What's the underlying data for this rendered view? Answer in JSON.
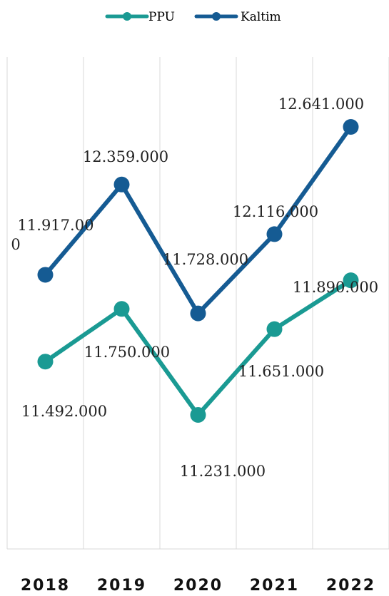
{
  "chart_data": {
    "type": "line",
    "categories": [
      "2018",
      "2019",
      "2020",
      "2021",
      "2022"
    ],
    "series": [
      {
        "name": "PPU",
        "values": [
          11492000,
          11750000,
          11231000,
          11651000,
          11890000
        ],
        "labels": [
          "11.492.000",
          "11.750.000",
          "11.231.000",
          "11.651.000",
          "11.890.000"
        ],
        "color": "#1a9a93"
      },
      {
        "name": "Kaltim",
        "values": [
          11917000,
          12359000,
          11728000,
          12116000,
          12641000
        ],
        "labels": [
          "11.917.000",
          "12.359.000",
          "11.728.000",
          "12.116.000",
          "12.641.000"
        ],
        "color": "#155b93"
      }
    ],
    "legend": "top-center",
    "grid": "vertical",
    "title": "",
    "xlabel": "",
    "ylabel": ""
  }
}
